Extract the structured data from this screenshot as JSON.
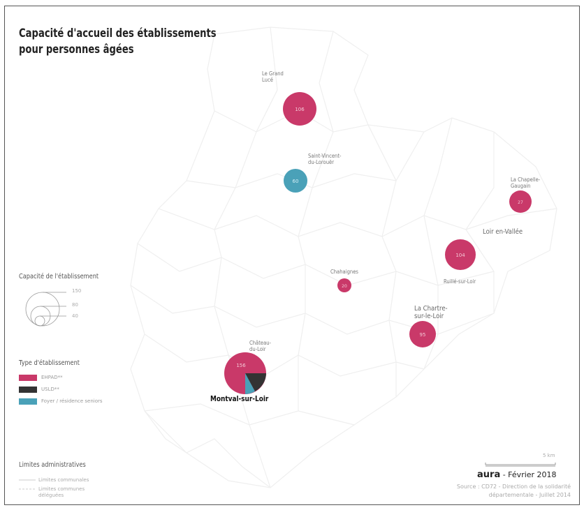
{
  "title": {
    "line1": "Capacité d'accueil des établissements",
    "line2": "pour personnes âgées"
  },
  "colors": {
    "ehpad": "#c93969",
    "usld": "#333333",
    "foyer": "#4aa1b8"
  },
  "places": [
    {
      "name": "Le Grand\nLucé",
      "capacity_label": "106"
    },
    {
      "name": "Saint-Vincent-\ndu-Lorouër",
      "capacity_label": "60"
    },
    {
      "name": "La Chapelle-\nGaugain",
      "capacity_label": "27"
    },
    {
      "name": "Loir en-Vallée",
      "capacity_label": "104"
    },
    {
      "name": "Ruillé-sur-Loir",
      "capacity_label": ""
    },
    {
      "name": "Chahaignes",
      "capacity_label": "20"
    },
    {
      "name": "La Chartre-\nsur-le-Loir",
      "capacity_label": "95"
    },
    {
      "name": "Château-\ndu-Loir",
      "capacity_label": "156"
    },
    {
      "name": "Montval-sur-Loir",
      "capacity_label": ""
    }
  ],
  "legend": {
    "capacity_title": "Capacité de l'établissement",
    "capacity_values": [
      "150",
      "80",
      "40"
    ],
    "type_title": "Type d'établissement",
    "types": [
      "EHPAD**",
      "USLD**",
      "Foyer / résidence seniors"
    ],
    "admin_title": "Limites administratives",
    "admin_items": [
      "Limites communales",
      "Limites communes\ndéléguées"
    ]
  },
  "scale_label": "5 km",
  "credits": {
    "brand": "aura",
    "date": "- Février 2018",
    "source_line1": "Source : CD72 - Direction de la solidarité",
    "source_line2": "départementale - Juillet 2014"
  }
}
